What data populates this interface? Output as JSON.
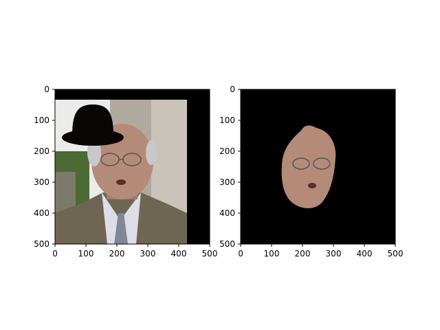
{
  "figure": {
    "panels": [
      {
        "name": "original-with-hat",
        "axis": {
          "x_ticks": [
            "0",
            "100",
            "200",
            "300",
            "400",
            "500"
          ],
          "y_ticks": [
            "0",
            "100",
            "200",
            "300",
            "400",
            "500"
          ],
          "xlim": [
            0,
            500
          ],
          "ylim": [
            500,
            0
          ]
        },
        "colors": {
          "hat": "#0b0606",
          "border": "#000000",
          "background_white": "#ffffff",
          "suit": "#6e6652",
          "shirt": "#dcdde6",
          "skin": "#b48a78",
          "hair": "#c8c8cc",
          "window_light": "#e9ece8",
          "curtain": "#b0a9a0",
          "foliage": "#4c6a34"
        }
      },
      {
        "name": "face-segment",
        "axis": {
          "x_ticks": [
            "0",
            "100",
            "200",
            "300",
            "400",
            "500"
          ],
          "y_ticks": [
            "0",
            "100",
            "200",
            "300",
            "400",
            "500"
          ],
          "xlim": [
            0,
            500
          ],
          "ylim": [
            500,
            0
          ]
        },
        "colors": {
          "background": "#000000",
          "skin": "#b48a78"
        }
      }
    ]
  }
}
